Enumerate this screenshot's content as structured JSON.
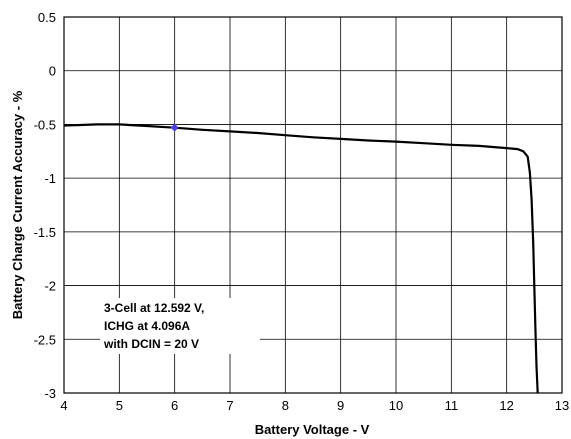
{
  "chart_data": {
    "type": "line",
    "xlabel": "Battery Voltage - V",
    "ylabel": "Battery Charge Current Accuracy - %",
    "xlim": [
      4,
      13
    ],
    "ylim": [
      -3,
      0.5
    ],
    "x_ticks": [
      4,
      5,
      6,
      7,
      8,
      9,
      10,
      11,
      12,
      13
    ],
    "x_tick_labels": [
      "4",
      "5",
      "6",
      "7",
      "8",
      "9",
      "10",
      "11",
      "12",
      "13"
    ],
    "y_ticks": [
      0.5,
      0,
      -0.5,
      -1,
      -1.5,
      -2,
      -2.5,
      -3
    ],
    "y_tick_labels": [
      "0.5",
      "0",
      "-0.5",
      "-1",
      "-1.5",
      "-2",
      "-2.5",
      "-3"
    ],
    "grid": true,
    "annotation": [
      "3-Cell at 12.592 V,",
      "ICHG at 4.096A",
      "with DCIN = 20 V"
    ],
    "series": [
      {
        "color": "#000000",
        "x": [
          4.0,
          4.3,
          4.6,
          5.0,
          5.5,
          6.0,
          6.5,
          7.0,
          7.5,
          8.0,
          8.5,
          9.0,
          9.5,
          10.0,
          10.5,
          11.0,
          11.5,
          12.0,
          12.2,
          12.3,
          12.38,
          12.42,
          12.45,
          12.48,
          12.5,
          12.52,
          12.54,
          12.56
        ],
        "y": [
          -0.51,
          -0.505,
          -0.5,
          -0.5,
          -0.515,
          -0.53,
          -0.55,
          -0.565,
          -0.58,
          -0.6,
          -0.62,
          -0.635,
          -0.65,
          -0.66,
          -0.675,
          -0.69,
          -0.7,
          -0.72,
          -0.73,
          -0.75,
          -0.8,
          -0.95,
          -1.2,
          -1.6,
          -2.0,
          -2.4,
          -2.75,
          -3.0
        ]
      }
    ],
    "marker": {
      "x": 6.0,
      "y": -0.53,
      "color": "#4b3fd6"
    }
  }
}
